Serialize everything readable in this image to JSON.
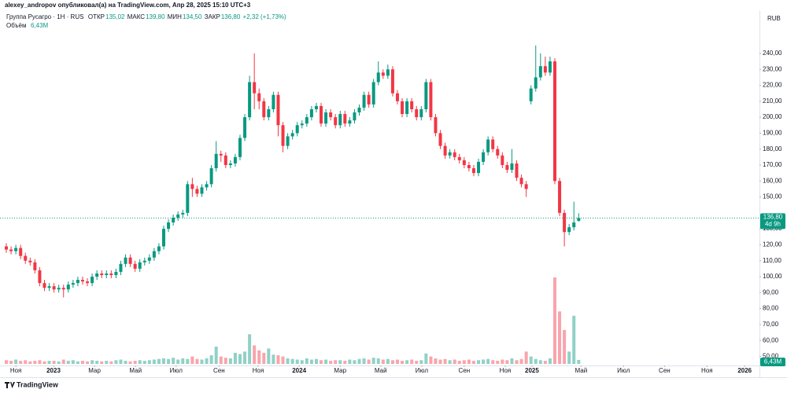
{
  "header": {
    "publisher": "alexey_andropov опубликовал(а) на TradingView.com, Апр 28, 2025 15:10 UTC+3",
    "currency": "RUB",
    "brand": "TradingView"
  },
  "chart_data": {
    "type": "candlestick",
    "title": "Группа Русагро · 1Н · RUS",
    "ohlc_legend": [
      {
        "label": "ОТКР",
        "value": "135,02"
      },
      {
        "label": "МАКС",
        "value": "139,80"
      },
      {
        "label": "МИН",
        "value": "134,50"
      },
      {
        "label": "ЗАКР",
        "value": "136,80"
      }
    ],
    "change": "+2,32 (+1,73%)",
    "volume_title": "Объём",
    "volume_label": "6,43M",
    "last_price_label": "136,80",
    "countdown": "4d 9h",
    "open": [
      119,
      117,
      116,
      118,
      113,
      110,
      109,
      104,
      96,
      93,
      94,
      92,
      93,
      92,
      95,
      96,
      98,
      97,
      96,
      100,
      102,
      101,
      102,
      101,
      103,
      108,
      112,
      108,
      105,
      109,
      110,
      112,
      116,
      119,
      130,
      134,
      137,
      139,
      140,
      158,
      155,
      152,
      156,
      158,
      168,
      177,
      176,
      170,
      171,
      175,
      187,
      200,
      222,
      215,
      210,
      200,
      205,
      214,
      195,
      182,
      188,
      190,
      195,
      196,
      200,
      205,
      207,
      196,
      203,
      200,
      195,
      202,
      196,
      198,
      203,
      206,
      214,
      208,
      222,
      228,
      226,
      230,
      215,
      210,
      202,
      210,
      205,
      200,
      205,
      222,
      200,
      190,
      182,
      176,
      178,
      175,
      173,
      170,
      168,
      165,
      172,
      178,
      186,
      180,
      176,
      170,
      167,
      171,
      162,
      158,
      210,
      218,
      225,
      232,
      228,
      235,
      160,
      140,
      128,
      131,
      135.02
    ],
    "high": [
      121,
      119,
      120,
      120,
      115,
      112,
      111,
      106,
      98,
      96,
      96,
      95,
      95,
      97,
      98,
      100,
      100,
      99,
      102,
      104,
      104,
      104,
      104,
      105,
      110,
      114,
      114,
      110,
      111,
      112,
      114,
      118,
      121,
      132,
      136,
      139,
      141,
      142,
      160,
      162,
      157,
      158,
      160,
      170,
      185,
      179,
      178,
      173,
      177,
      189,
      202,
      226,
      240,
      218,
      212,
      207,
      216,
      216,
      197,
      190,
      192,
      197,
      198,
      202,
      207,
      209,
      209,
      205,
      205,
      202,
      204,
      204,
      200,
      205,
      208,
      216,
      216,
      224,
      235,
      230,
      233,
      232,
      217,
      212,
      212,
      212,
      207,
      207,
      224,
      224,
      202,
      192,
      184,
      180,
      180,
      177,
      175,
      172,
      170,
      174,
      180,
      188,
      188,
      182,
      178,
      172,
      180,
      173,
      164,
      160,
      220,
      245,
      240,
      238,
      238,
      237,
      162,
      142,
      133,
      147,
      139.8
    ],
    "low": [
      115,
      114,
      114,
      111,
      108,
      107,
      102,
      94,
      91,
      91,
      90,
      90,
      87,
      90,
      93,
      94,
      95,
      94,
      94,
      98,
      99,
      99,
      99,
      99,
      101,
      106,
      106,
      103,
      103,
      107,
      108,
      110,
      114,
      117,
      128,
      132,
      135,
      137,
      138,
      150,
      150,
      150,
      154,
      156,
      166,
      172,
      168,
      168,
      169,
      173,
      185,
      198,
      205,
      205,
      198,
      198,
      203,
      188,
      178,
      180,
      186,
      188,
      193,
      194,
      198,
      203,
      194,
      194,
      198,
      193,
      193,
      194,
      194,
      196,
      201,
      204,
      206,
      206,
      220,
      224,
      224,
      213,
      208,
      200,
      200,
      203,
      198,
      198,
      203,
      198,
      188,
      180,
      174,
      174,
      173,
      171,
      168,
      166,
      163,
      163,
      170,
      176,
      178,
      174,
      168,
      165,
      165,
      160,
      156,
      150,
      208,
      216,
      223,
      226,
      226,
      158,
      138,
      119,
      126,
      129,
      134.5
    ],
    "close": [
      117,
      116,
      118,
      113,
      110,
      109,
      104,
      96,
      93,
      94,
      92,
      93,
      92,
      95,
      96,
      98,
      97,
      96,
      100,
      102,
      101,
      102,
      101,
      103,
      108,
      112,
      108,
      105,
      109,
      110,
      112,
      116,
      119,
      130,
      134,
      137,
      139,
      140,
      158,
      155,
      152,
      156,
      158,
      168,
      177,
      176,
      170,
      171,
      175,
      187,
      200,
      222,
      215,
      210,
      200,
      205,
      214,
      195,
      182,
      188,
      190,
      195,
      196,
      200,
      205,
      207,
      196,
      203,
      200,
      195,
      202,
      196,
      198,
      203,
      206,
      214,
      208,
      222,
      228,
      226,
      230,
      215,
      210,
      202,
      210,
      205,
      200,
      205,
      222,
      200,
      190,
      182,
      176,
      178,
      175,
      173,
      170,
      168,
      165,
      172,
      178,
      186,
      180,
      176,
      170,
      167,
      171,
      162,
      158,
      155,
      218,
      225,
      232,
      228,
      235,
      160,
      140,
      128,
      131,
      134,
      136.8
    ],
    "volume": [
      6,
      5,
      7,
      5,
      6,
      4,
      5,
      6,
      4,
      5,
      5,
      4,
      7,
      5,
      6,
      4,
      5,
      4,
      6,
      5,
      4,
      5,
      4,
      6,
      7,
      5,
      4,
      5,
      6,
      5,
      6,
      7,
      8,
      9,
      8,
      10,
      7,
      9,
      8,
      12,
      8,
      7,
      9,
      14,
      28,
      12,
      10,
      9,
      18,
      16,
      20,
      48,
      30,
      22,
      18,
      25,
      15,
      14,
      12,
      9,
      8,
      7,
      6,
      9,
      7,
      8,
      6,
      7,
      5,
      6,
      6,
      5,
      7,
      6,
      8,
      9,
      7,
      10,
      9,
      7,
      8,
      6,
      7,
      5,
      6,
      7,
      5,
      6,
      17,
      12,
      9,
      7,
      8,
      6,
      7,
      5,
      6,
      7,
      5,
      6,
      7,
      8,
      6,
      5,
      7,
      6,
      9,
      6,
      8,
      20,
      12,
      8,
      6,
      5,
      9,
      140,
      85,
      55,
      20,
      78,
      6.43
    ],
    "colors": {
      "up": "#089981",
      "down": "#f23645"
    },
    "grid": false,
    "ylim": [
      44.3,
      266.6
    ],
    "yticks": [
      {
        "value": 50,
        "label": "50,00"
      },
      {
        "value": 60,
        "label": "60,00"
      },
      {
        "value": 70,
        "label": "70,00"
      },
      {
        "value": 80,
        "label": "80,00"
      },
      {
        "value": 90,
        "label": "90,00"
      },
      {
        "value": 100,
        "label": "100,00"
      },
      {
        "value": 110,
        "label": "110,00"
      },
      {
        "value": 120,
        "label": "120,00"
      },
      {
        "value": 130,
        "label": "130,00"
      },
      {
        "value": 150,
        "label": "150,00"
      },
      {
        "value": 160,
        "label": "160,00"
      },
      {
        "value": 170,
        "label": "170,00"
      },
      {
        "value": 180,
        "label": "180,00"
      },
      {
        "value": 190,
        "label": "190,00"
      },
      {
        "value": 200,
        "label": "200,00"
      },
      {
        "value": 210,
        "label": "210,00"
      },
      {
        "value": 220,
        "label": "220,00"
      },
      {
        "value": 230,
        "label": "230,00"
      },
      {
        "value": 240,
        "label": "240,00"
      }
    ],
    "xlim": [
      -1.32,
      157.9
    ],
    "xticks": [
      {
        "value": 2.0,
        "label": "Ноя"
      },
      {
        "value": 9.9,
        "label": "2023"
      },
      {
        "value": 18.5,
        "label": "Мар"
      },
      {
        "value": 27.1,
        "label": "Май"
      },
      {
        "value": 35.6,
        "label": "Июл"
      },
      {
        "value": 44.6,
        "label": "Сен"
      },
      {
        "value": 52.8,
        "label": "Ноя"
      },
      {
        "value": 61.4,
        "label": "2024"
      },
      {
        "value": 70.0,
        "label": "Мар"
      },
      {
        "value": 78.5,
        "label": "Май"
      },
      {
        "value": 87.1,
        "label": "Июл"
      },
      {
        "value": 96.0,
        "label": "Сен"
      },
      {
        "value": 104.6,
        "label": "Ноя"
      },
      {
        "value": 110.2,
        "label": "2025"
      },
      {
        "value": 120.5,
        "label": "Май"
      },
      {
        "value": 129.4,
        "label": "Июл"
      },
      {
        "value": 138.0,
        "label": "Сен"
      },
      {
        "value": 146.9,
        "label": "Ноя"
      },
      {
        "value": 154.8,
        "label": "2026"
      }
    ]
  }
}
